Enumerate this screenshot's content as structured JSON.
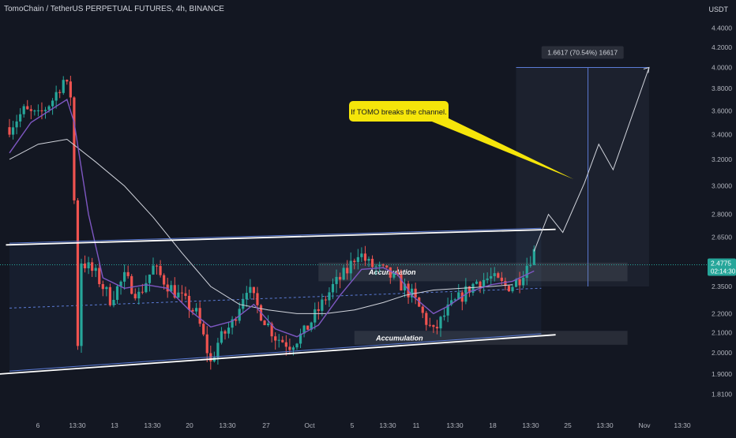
{
  "chart_title": "TomoChain / TetherUS PERPETUAL FUTURES, 4h, BINANCE",
  "unit": "USDT",
  "current_price": "2.4775",
  "countdown": "02:14:30",
  "measure_label": "1.6617 (70.54%) 16617",
  "callout_text": "If TOMO breaks the channel.",
  "accumulation_labels": [
    "Accumulation",
    "Accumulation"
  ],
  "colors": {
    "background": "#131722",
    "up": "#26a69a",
    "down": "#ef5350",
    "ma_fast": "#7e57c2",
    "ma_slow": "#d1d4dc",
    "channel_line": "#ffffff",
    "channel_inner": "#5b7bd5",
    "callout_bg": "#f5e50a",
    "price_tag": "#26a69a"
  },
  "chart_data": {
    "type": "candlestick",
    "title": "TomoChain / TetherUS PERPETUAL FUTURES, 4h, BINANCE",
    "ylabel": "USDT",
    "y_scale": "log",
    "ylim": [
      1.78,
      4.5
    ],
    "y_ticks": [
      "4.4000",
      "4.2000",
      "4.0000",
      "3.8000",
      "3.6000",
      "3.4000",
      "3.2000",
      "3.0000",
      "2.8000",
      "2.6500",
      "2.5000",
      "2.3500",
      "2.2000",
      "2.1000",
      "2.0000",
      "1.9000",
      "1.8100"
    ],
    "x_ticks": [
      "6",
      "13:30",
      "13",
      "13:30",
      "20",
      "13:30",
      "27",
      "13:30",
      "Oct",
      "5",
      "13:30",
      "11",
      "13:30",
      "18",
      "13:30",
      "25",
      "13:30",
      "Nov",
      "13:30"
    ],
    "price_path": [
      [
        0,
        3.46
      ],
      [
        4,
        3.6
      ],
      [
        8,
        3.55
      ],
      [
        12,
        3.7
      ],
      [
        15,
        3.88
      ],
      [
        17,
        3.74
      ],
      [
        19,
        2.05
      ],
      [
        20,
        2.5
      ],
      [
        24,
        2.42
      ],
      [
        28,
        2.28
      ],
      [
        32,
        2.4
      ],
      [
        36,
        2.3
      ],
      [
        40,
        2.46
      ],
      [
        44,
        2.36
      ],
      [
        48,
        2.28
      ],
      [
        52,
        2.2
      ],
      [
        56,
        1.95
      ],
      [
        58,
        2.05
      ],
      [
        62,
        2.15
      ],
      [
        66,
        2.35
      ],
      [
        70,
        2.2
      ],
      [
        74,
        2.08
      ],
      [
        78,
        2.04
      ],
      [
        82,
        2.1
      ],
      [
        86,
        2.22
      ],
      [
        90,
        2.35
      ],
      [
        94,
        2.44
      ],
      [
        97,
        2.56
      ],
      [
        100,
        2.48
      ],
      [
        104,
        2.44
      ],
      [
        108,
        2.38
      ],
      [
        112,
        2.3
      ],
      [
        116,
        2.16
      ],
      [
        118,
        2.1
      ],
      [
        122,
        2.22
      ],
      [
        126,
        2.3
      ],
      [
        130,
        2.38
      ],
      [
        134,
        2.4
      ],
      [
        138,
        2.35
      ],
      [
        140,
        2.36
      ],
      [
        142,
        2.4
      ],
      [
        144,
        2.48
      ],
      [
        146,
        2.56
      ]
    ],
    "ma_fast_path": [
      [
        0,
        3.25
      ],
      [
        6,
        3.5
      ],
      [
        12,
        3.62
      ],
      [
        16,
        3.7
      ],
      [
        18,
        3.5
      ],
      [
        22,
        2.8
      ],
      [
        26,
        2.4
      ],
      [
        32,
        2.34
      ],
      [
        38,
        2.36
      ],
      [
        44,
        2.34
      ],
      [
        50,
        2.22
      ],
      [
        56,
        2.13
      ],
      [
        62,
        2.16
      ],
      [
        68,
        2.25
      ],
      [
        74,
        2.12
      ],
      [
        80,
        2.08
      ],
      [
        86,
        2.14
      ],
      [
        92,
        2.3
      ],
      [
        98,
        2.45
      ],
      [
        104,
        2.46
      ],
      [
        108,
        2.42
      ],
      [
        112,
        2.3
      ],
      [
        118,
        2.2
      ],
      [
        122,
        2.24
      ],
      [
        128,
        2.32
      ],
      [
        134,
        2.36
      ],
      [
        140,
        2.38
      ],
      [
        146,
        2.44
      ]
    ],
    "ma_slow_path": [
      [
        0,
        3.2
      ],
      [
        8,
        3.32
      ],
      [
        16,
        3.36
      ],
      [
        24,
        3.18
      ],
      [
        32,
        3.0
      ],
      [
        40,
        2.78
      ],
      [
        48,
        2.55
      ],
      [
        56,
        2.35
      ],
      [
        64,
        2.25
      ],
      [
        72,
        2.22
      ],
      [
        80,
        2.2
      ],
      [
        88,
        2.2
      ],
      [
        96,
        2.22
      ],
      [
        104,
        2.26
      ],
      [
        110,
        2.3
      ],
      [
        118,
        2.33
      ],
      [
        126,
        2.34
      ],
      [
        134,
        2.35
      ],
      [
        140,
        2.36
      ]
    ],
    "channel_upper": [
      [
        -1,
        2.6
      ],
      [
        152,
        2.7
      ]
    ],
    "channel_lower": [
      [
        -3,
        1.9
      ],
      [
        152,
        2.09
      ]
    ],
    "projection": [
      [
        146,
        2.56
      ],
      [
        150,
        2.8
      ],
      [
        154,
        2.68
      ],
      [
        160,
        3.02
      ],
      [
        164,
        3.32
      ],
      [
        168,
        3.12
      ],
      [
        178,
        4.0
      ]
    ],
    "measure_range": [
      2.35,
      4.0
    ]
  }
}
